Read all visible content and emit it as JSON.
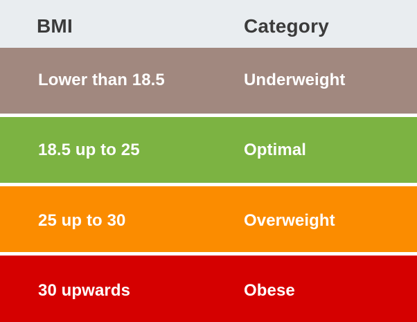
{
  "table": {
    "headers": {
      "bmi": "BMI",
      "category": "Category"
    },
    "rows": [
      {
        "bmi": "Lower than 18.5",
        "category": "Underweight",
        "color": "#a1887f"
      },
      {
        "bmi": "18.5 up to 25",
        "category": "Optimal",
        "color": "#7cb342"
      },
      {
        "bmi": "25 up to 30",
        "category": "Overweight",
        "color": "#fb8c00"
      },
      {
        "bmi": "30 upwards",
        "category": "Obese",
        "color": "#d50000"
      }
    ],
    "header_background": "#e9edf0",
    "header_text_color": "#3b3b3b",
    "row_text_color": "#ffffff"
  }
}
